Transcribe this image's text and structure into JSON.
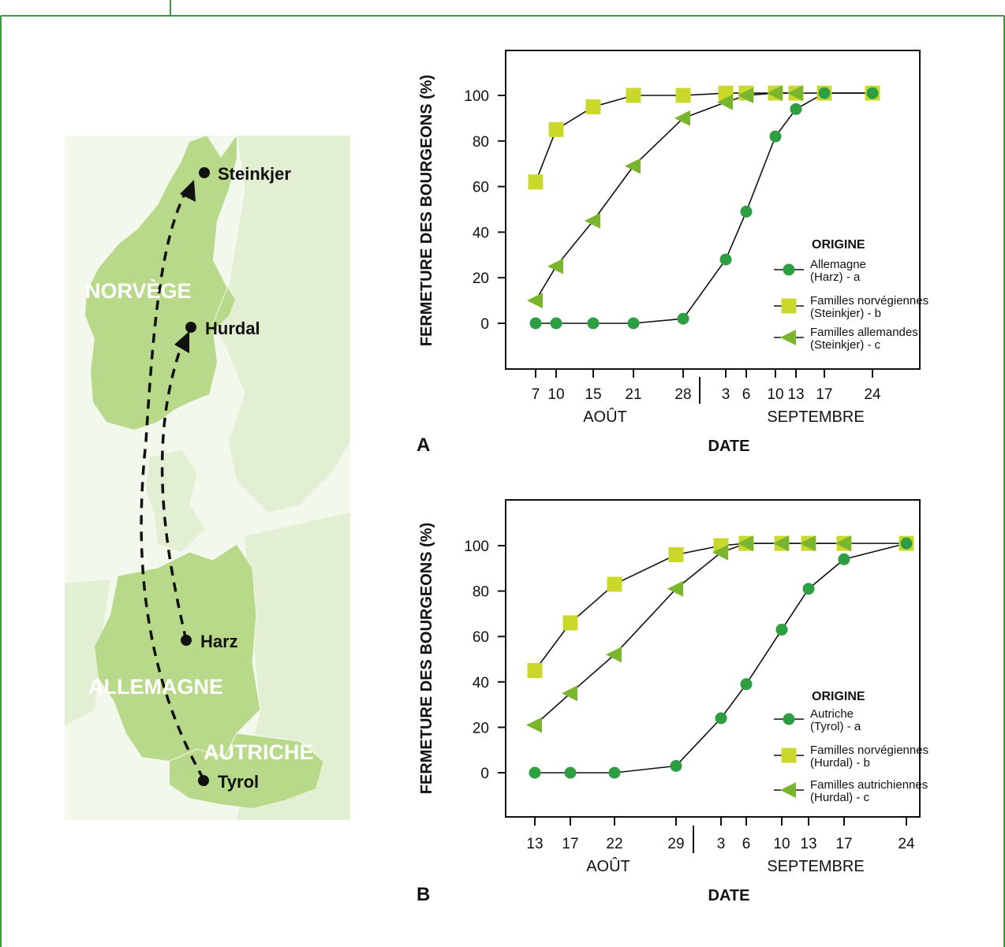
{
  "map": {
    "countries": [
      "NORVÈGE",
      "ALLEMAGNE",
      "AUTRICHE"
    ],
    "places": [
      "Steinkjer",
      "Hurdal",
      "Harz",
      "Tyrol"
    ],
    "colors": {
      "highlight": "#b9d98a",
      "light": "#dcebc4",
      "lighter": "#eaf3dc",
      "route": "#111111"
    }
  },
  "colors": {
    "frame": "#3b9a3b",
    "circle": "#2e9e43",
    "square": "#c9d82b",
    "triangle": "#7ab52e"
  },
  "chart_data": [
    {
      "panel_label": "A",
      "type": "line",
      "ylabel": "FERMETURE DES BOURGEONS (%)",
      "xlabel": "DATE",
      "month_labels": [
        "AOÛT",
        "SEPTEMBRE"
      ],
      "x": [
        "7 août",
        "10 août",
        "15 août",
        "21 août",
        "28 août",
        "3 sept",
        "6 sept",
        "10 sept",
        "13 sept",
        "17 sept",
        "24 sept"
      ],
      "xticks": [
        "7",
        "10",
        "15",
        "21",
        "28",
        "3",
        "6",
        "10",
        "13",
        "17",
        "24"
      ],
      "yticks": [
        "0",
        "20",
        "40",
        "60",
        "80",
        "100"
      ],
      "ylim": [
        -20,
        120
      ],
      "legend_title": "ORIGINE",
      "series": [
        {
          "name_line1": "Allemagne",
          "name_line2": "(Harz) - a",
          "marker": "circle",
          "points": [
            [
              "7 août",
              0
            ],
            [
              "10 août",
              0
            ],
            [
              "15 août",
              0
            ],
            [
              "21 août",
              0
            ],
            [
              "28 août",
              2
            ],
            [
              "3 sept",
              28
            ],
            [
              "6 sept",
              49
            ],
            [
              "10 sept",
              82
            ],
            [
              "13 sept",
              94
            ],
            [
              "17 sept",
              101
            ],
            [
              "24 sept",
              101
            ]
          ]
        },
        {
          "name_line1": "Familles norvégiennes",
          "name_line2": "(Steinkjer) - b",
          "marker": "square",
          "points": [
            [
              "7 août",
              62
            ],
            [
              "10 août",
              85
            ],
            [
              "15 août",
              95
            ],
            [
              "21 août",
              100
            ],
            [
              "28 août",
              100
            ],
            [
              "3 sept",
              101
            ],
            [
              "6 sept",
              101
            ],
            [
              "10 sept",
              101
            ],
            [
              "13 sept",
              101
            ],
            [
              "17 sept",
              101
            ],
            [
              "24 sept",
              101
            ]
          ]
        },
        {
          "name_line1": "Familles allemandes",
          "name_line2": "(Steinkjer) - c",
          "marker": "triangle",
          "points": [
            [
              "7 août",
              10
            ],
            [
              "10 août",
              25
            ],
            [
              "15 août",
              45
            ],
            [
              "21 août",
              69
            ],
            [
              "28 août",
              90
            ],
            [
              "3 sept",
              97
            ],
            [
              "6 sept",
              100
            ],
            [
              "10 sept",
              101
            ],
            [
              "13 sept",
              101
            ]
          ]
        }
      ]
    },
    {
      "panel_label": "B",
      "type": "line",
      "ylabel": "FERMETURE DES BOURGEONS (%)",
      "xlabel": "DATE",
      "month_labels": [
        "AOÛT",
        "SEPTEMBRE"
      ],
      "x": [
        "13 août",
        "17 août",
        "22 août",
        "29 août",
        "3 sept",
        "6 sept",
        "10 sept",
        "13 sept",
        "17 sept",
        "24 sept"
      ],
      "xticks": [
        "13",
        "17",
        "22",
        "29",
        "3",
        "6",
        "10",
        "13",
        "17",
        "24"
      ],
      "yticks": [
        "0",
        "20",
        "40",
        "60",
        "80",
        "100"
      ],
      "ylim": [
        -20,
        120
      ],
      "legend_title": "ORIGINE",
      "series": [
        {
          "name_line1": "Autriche",
          "name_line2": "(Tyrol) - a",
          "marker": "circle",
          "points": [
            [
              "13 août",
              0
            ],
            [
              "17 août",
              0
            ],
            [
              "22 août",
              0
            ],
            [
              "29 août",
              3
            ],
            [
              "3 sept",
              24
            ],
            [
              "6 sept",
              39
            ],
            [
              "10 sept",
              63
            ],
            [
              "13 sept",
              81
            ],
            [
              "17 sept",
              94
            ],
            [
              "24 sept",
              101
            ]
          ]
        },
        {
          "name_line1": "Familles norvégiennes",
          "name_line2": "(Hurdal) - b",
          "marker": "square",
          "points": [
            [
              "13 août",
              45
            ],
            [
              "17 août",
              66
            ],
            [
              "22 août",
              83
            ],
            [
              "29 août",
              96
            ],
            [
              "3 sept",
              100
            ],
            [
              "6 sept",
              101
            ],
            [
              "10 sept",
              101
            ],
            [
              "13 sept",
              101
            ],
            [
              "17 sept",
              101
            ],
            [
              "24 sept",
              101
            ]
          ]
        },
        {
          "name_line1": "Familles autrichiennes",
          "name_line2": "(Hurdal) - c",
          "marker": "triangle",
          "points": [
            [
              "13 août",
              21
            ],
            [
              "17 août",
              35
            ],
            [
              "22 août",
              52
            ],
            [
              "29 août",
              81
            ],
            [
              "3 sept",
              97
            ],
            [
              "6 sept",
              101
            ],
            [
              "10 sept",
              101
            ],
            [
              "13 sept",
              101
            ],
            [
              "17 sept",
              101
            ]
          ]
        }
      ]
    }
  ]
}
